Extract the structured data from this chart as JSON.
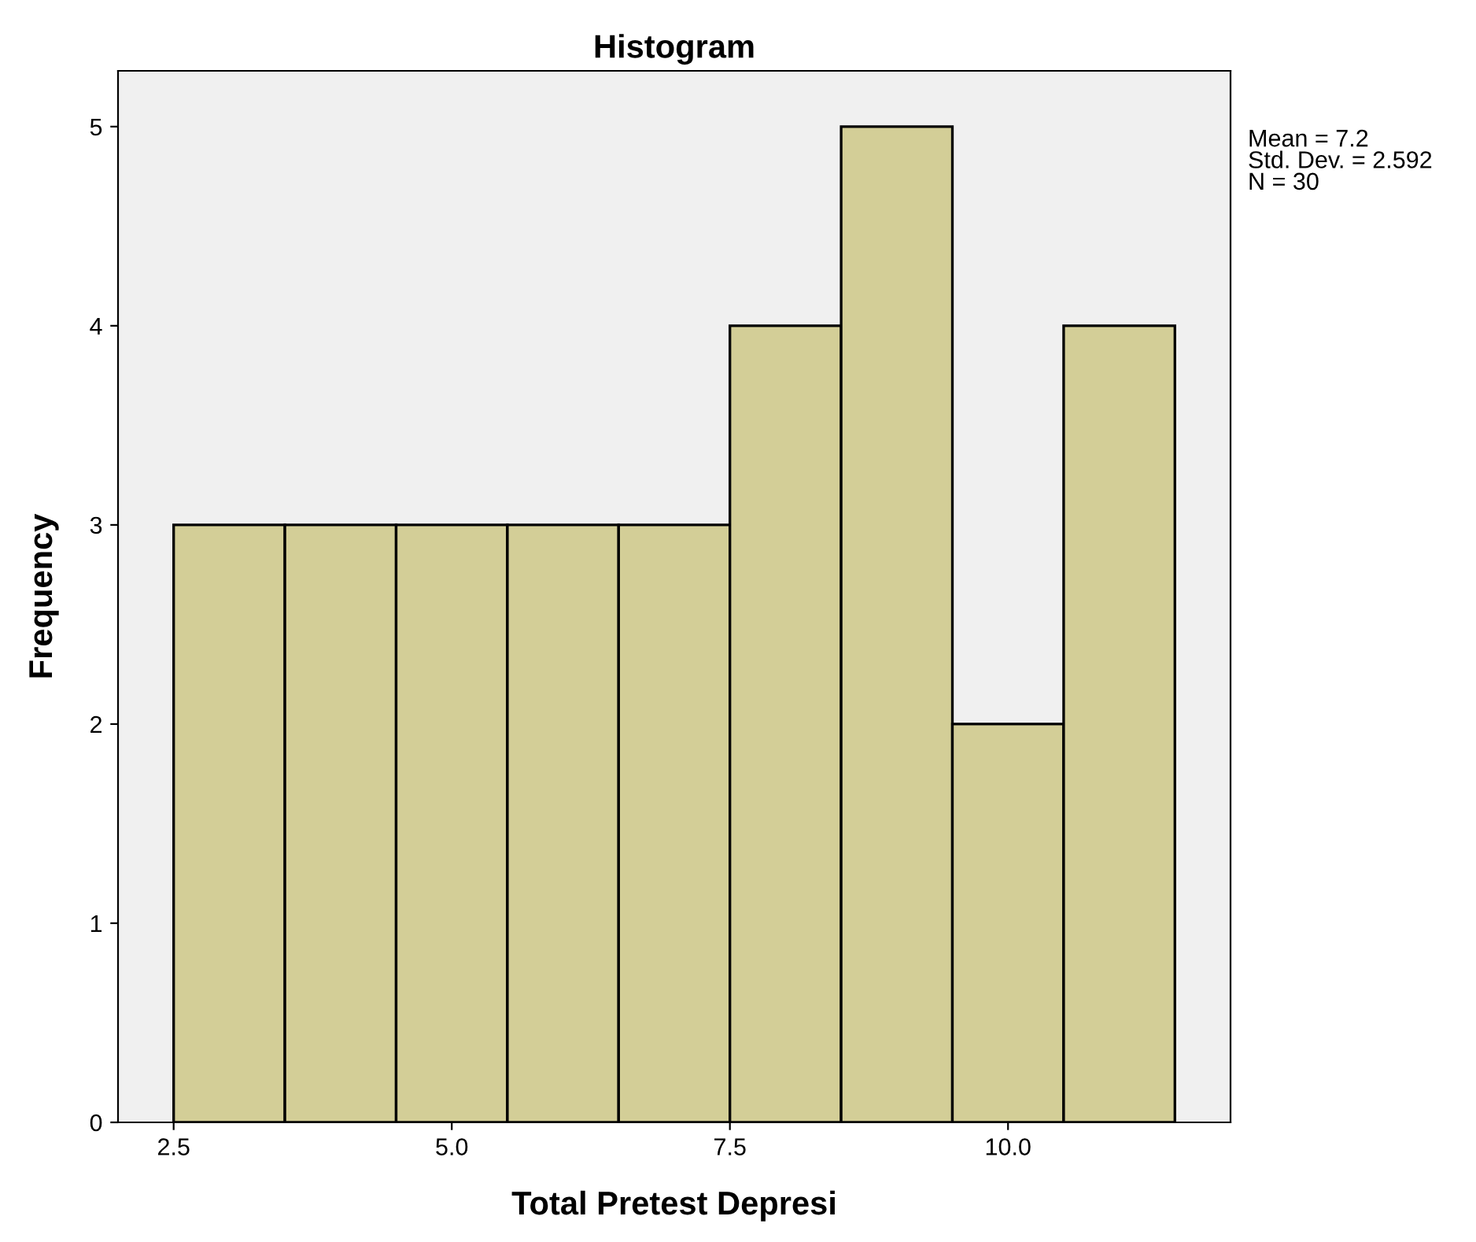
{
  "chart_data": {
    "type": "histogram",
    "title": "Histogram",
    "xlabel": "Total Pretest Depresi",
    "ylabel": "Frequency",
    "bins": [
      2.5,
      3.5,
      4.5,
      5.5,
      6.5,
      7.5,
      8.5,
      9.5,
      10.5,
      11.5
    ],
    "values": [
      3,
      3,
      3,
      3,
      3,
      4,
      5,
      2,
      4
    ],
    "color": "#d3ce97",
    "xlim": [
      2.0,
      12.0
    ],
    "xticks": [
      {
        "value": 2.5,
        "label": "2.5"
      },
      {
        "value": 5.0,
        "label": "5.0"
      },
      {
        "value": 7.5,
        "label": "7.5"
      },
      {
        "value": 10.0,
        "label": "10.0"
      }
    ],
    "ylim": [
      0,
      5.28
    ],
    "yticks": [
      0,
      1,
      2,
      3,
      4,
      5
    ],
    "grid": false,
    "annotations": [
      "Mean = 7.2\nStd. Dev. = 2.592\nN = 30"
    ]
  }
}
